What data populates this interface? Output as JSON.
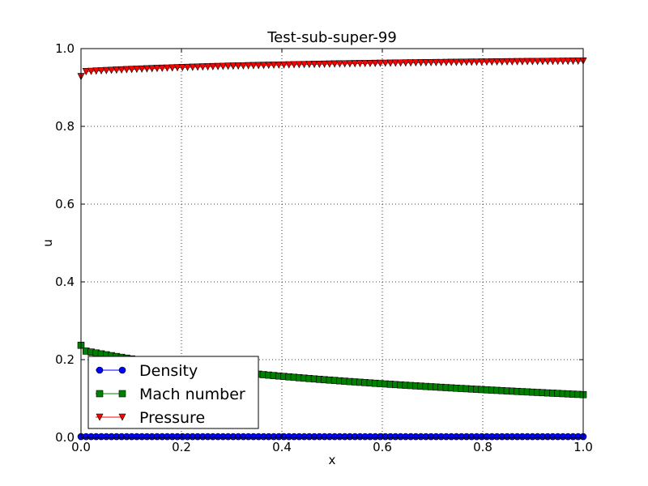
{
  "chart_data": {
    "type": "line",
    "title": "Test-sub-super-99",
    "xlabel": "x",
    "ylabel": "u",
    "xlim": [
      0.0,
      1.0
    ],
    "ylim": [
      0.0,
      1.0
    ],
    "xticks": [
      "0.0",
      "0.2",
      "0.4",
      "0.6",
      "0.8",
      "1.0"
    ],
    "yticks": [
      "0.0",
      "0.2",
      "0.4",
      "0.6",
      "0.8",
      "1.0"
    ],
    "grid": true,
    "legend_position": "lower-left",
    "x_range": {
      "start": 0.0,
      "end": 1.0,
      "count": 100
    },
    "series": [
      {
        "name": "Density",
        "color": "#0000ff",
        "marker": "circle",
        "y_start": 0.002,
        "y_end": 0.002,
        "curve": 0,
        "y_first": 0.002
      },
      {
        "name": "Mach number",
        "color": "#008000",
        "marker": "square",
        "y_start": 0.222,
        "y_end": 0.11,
        "curve": 0.55,
        "y_first": 0.237
      },
      {
        "name": "Pressure",
        "color": "#ff0000",
        "marker": "triangle-down",
        "y_start": 0.941,
        "y_end": 0.968,
        "curve": 0.7,
        "y_first": 0.928
      }
    ]
  }
}
